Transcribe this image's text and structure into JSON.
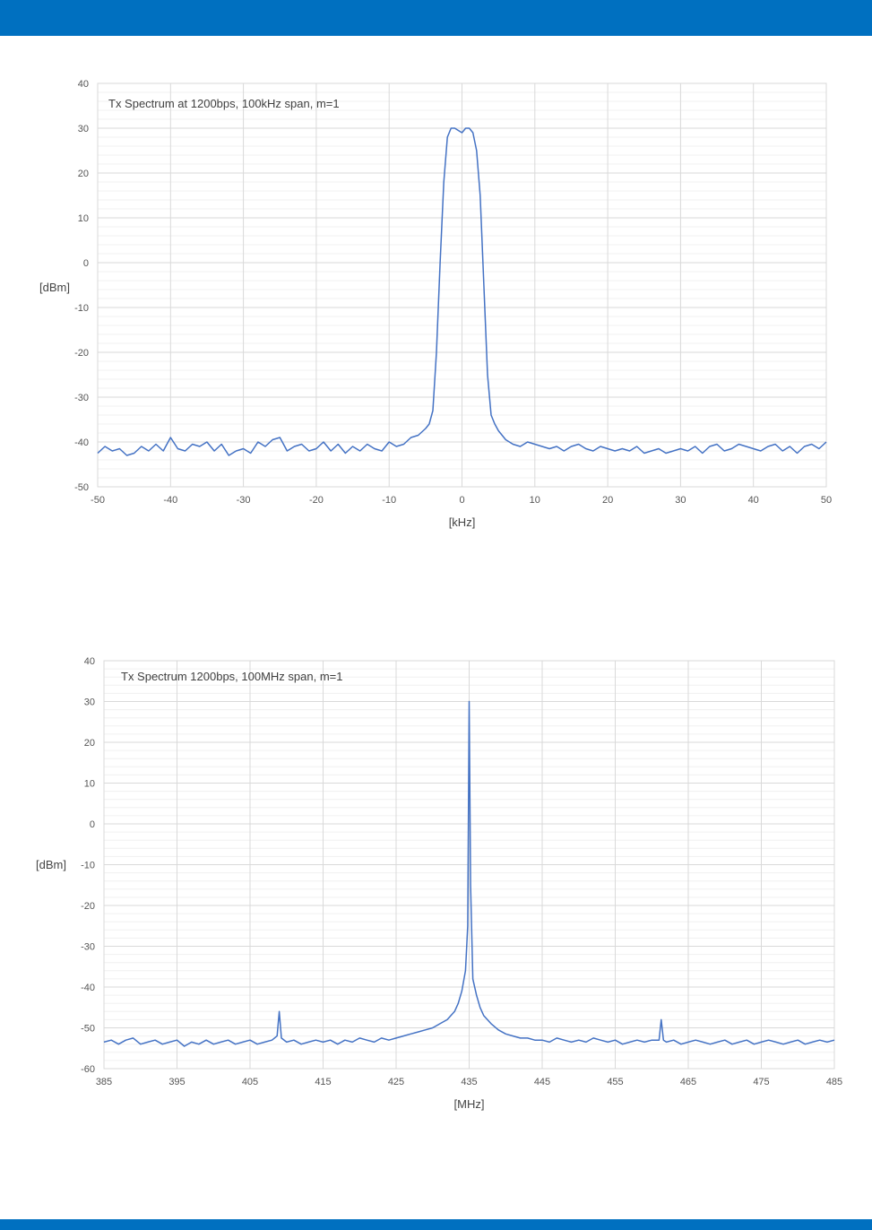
{
  "colors": {
    "header_bar": "#0070c0",
    "footer_bar": "#0070c0",
    "line": "#4472c4",
    "major_grid": "#d9d9d9",
    "minor_grid": "#f0f0f0"
  },
  "chart_data": [
    {
      "type": "line",
      "title": "Tx Spectrum at 1200bps, 100kHz span, m=1",
      "xlabel": "[kHz]",
      "ylabel": "[dBm]",
      "xlim": [
        -50,
        50
      ],
      "ylim": [
        -50,
        40
      ],
      "xticks": [
        -50,
        -40,
        -30,
        -20,
        -10,
        0,
        10,
        20,
        30,
        40,
        50
      ],
      "yticks": [
        40,
        30,
        20,
        10,
        0,
        -10,
        -20,
        -30,
        -40,
        -50
      ],
      "grid": true,
      "legend": "none",
      "series": [
        {
          "x": [
            -50,
            -49,
            -48,
            -47,
            -46,
            -45,
            -44,
            -43,
            -42,
            -41,
            -40,
            -39,
            -38,
            -37,
            -36,
            -35,
            -34,
            -33,
            -32,
            -31,
            -30,
            -29,
            -28,
            -27,
            -26,
            -25,
            -24,
            -23,
            -22,
            -21,
            -20,
            -19,
            -18,
            -17,
            -16,
            -15,
            -14,
            -13,
            -12,
            -11,
            -10,
            -9,
            -8,
            -7,
            -6,
            -5,
            -4.5,
            -4,
            -3.5,
            -3,
            -2.5,
            -2,
            -1.5,
            -1,
            -0.5,
            0,
            0.5,
            1,
            1.5,
            2,
            2.5,
            3,
            3.5,
            4,
            4.5,
            5,
            6,
            7,
            8,
            9,
            10,
            11,
            12,
            13,
            14,
            15,
            16,
            17,
            18,
            19,
            20,
            21,
            22,
            23,
            24,
            25,
            26,
            27,
            28,
            29,
            30,
            31,
            32,
            33,
            34,
            35,
            36,
            37,
            38,
            39,
            40,
            41,
            42,
            43,
            44,
            45,
            46,
            47,
            48,
            49,
            50
          ],
          "y": [
            -42.5,
            -41,
            -42,
            -41.5,
            -43,
            -42.5,
            -41,
            -42,
            -40.5,
            -42,
            -39,
            -41.5,
            -42,
            -40.5,
            -41,
            -40,
            -42,
            -40.5,
            -43,
            -42,
            -41.5,
            -42.5,
            -40,
            -41,
            -39.5,
            -39,
            -42,
            -41,
            -40.5,
            -42,
            -41.5,
            -40,
            -42,
            -40.5,
            -42.5,
            -41,
            -42,
            -40.5,
            -41.5,
            -42,
            -40,
            -41,
            -40.5,
            -39,
            -38.5,
            -37,
            -36,
            -33,
            -20,
            0,
            18,
            28,
            30,
            30,
            29.5,
            29,
            30,
            30,
            29,
            25,
            15,
            -5,
            -25,
            -34,
            -36,
            -37.5,
            -39.5,
            -40.5,
            -41,
            -40,
            -40.5,
            -41,
            -41.5,
            -41,
            -42,
            -41,
            -40.5,
            -41.5,
            -42,
            -41,
            -41.5,
            -42,
            -41.5,
            -42,
            -41,
            -42.5,
            -42,
            -41.5,
            -42.5,
            -42,
            -41.5,
            -42,
            -41,
            -42.5,
            -41,
            -40.5,
            -42,
            -41.5,
            -40.5,
            -41,
            -41.5,
            -42,
            -41,
            -40.5,
            -42,
            -41,
            -42.5,
            -41,
            -40.5,
            -41.5,
            -40
          ]
        }
      ]
    },
    {
      "type": "line",
      "title": "Tx Spectrum 1200bps, 100MHz span, m=1",
      "xlabel": "[MHz]",
      "ylabel": "[dBm]",
      "xlim": [
        385,
        485
      ],
      "ylim": [
        -60,
        40
      ],
      "xticks": [
        385,
        395,
        405,
        415,
        425,
        435,
        445,
        455,
        465,
        475,
        485
      ],
      "yticks": [
        40,
        30,
        20,
        10,
        0,
        -10,
        -20,
        -30,
        -40,
        -50,
        -60
      ],
      "grid": true,
      "legend": "none",
      "series": [
        {
          "x": [
            385,
            386,
            387,
            388,
            389,
            390,
            391,
            392,
            393,
            394,
            395,
            396,
            397,
            398,
            399,
            400,
            401,
            402,
            403,
            404,
            405,
            406,
            407,
            408,
            408.7,
            409,
            409.3,
            410,
            411,
            412,
            413,
            414,
            415,
            416,
            417,
            418,
            419,
            420,
            421,
            422,
            423,
            424,
            425,
            426,
            427,
            428,
            429,
            430,
            431,
            432,
            433,
            433.5,
            434,
            434.5,
            434.8,
            435,
            435.2,
            435.5,
            436,
            436.5,
            437,
            438,
            439,
            440,
            441,
            442,
            443,
            444,
            445,
            446,
            447,
            448,
            449,
            450,
            451,
            452,
            453,
            454,
            455,
            456,
            457,
            458,
            459,
            460,
            461,
            461.3,
            461.6,
            462,
            463,
            464,
            465,
            466,
            467,
            468,
            469,
            470,
            471,
            472,
            473,
            474,
            475,
            476,
            477,
            478,
            479,
            480,
            481,
            482,
            483,
            484,
            485
          ],
          "y": [
            -53.5,
            -53,
            -54,
            -53,
            -52.5,
            -54,
            -53.5,
            -53,
            -54,
            -53.5,
            -53,
            -54.5,
            -53.5,
            -54,
            -53,
            -54,
            -53.5,
            -53,
            -54,
            -53.5,
            -53,
            -54,
            -53.5,
            -53,
            -52,
            -46,
            -52.5,
            -53.5,
            -53,
            -54,
            -53.5,
            -53,
            -53.5,
            -53,
            -54,
            -53,
            -53.5,
            -52.5,
            -53,
            -53.5,
            -52.5,
            -53,
            -52.5,
            -52,
            -51.5,
            -51,
            -50.5,
            -50,
            -49,
            -48,
            -46,
            -44,
            -41,
            -36,
            -25,
            30,
            -15,
            -38,
            -42,
            -45,
            -47,
            -49,
            -50.5,
            -51.5,
            -52,
            -52.5,
            -52.5,
            -53,
            -53,
            -53.5,
            -52.5,
            -53,
            -53.5,
            -53,
            -53.5,
            -52.5,
            -53,
            -53.5,
            -53,
            -54,
            -53.5,
            -53,
            -53.5,
            -53,
            -53,
            -48,
            -53,
            -53.5,
            -53,
            -54,
            -53.5,
            -53,
            -53.5,
            -54,
            -53.5,
            -53,
            -54,
            -53.5,
            -53,
            -54,
            -53.5,
            -53,
            -53.5,
            -54,
            -53.5,
            -53,
            -54,
            -53.5,
            -53,
            -53.5,
            -53
          ]
        }
      ]
    }
  ]
}
